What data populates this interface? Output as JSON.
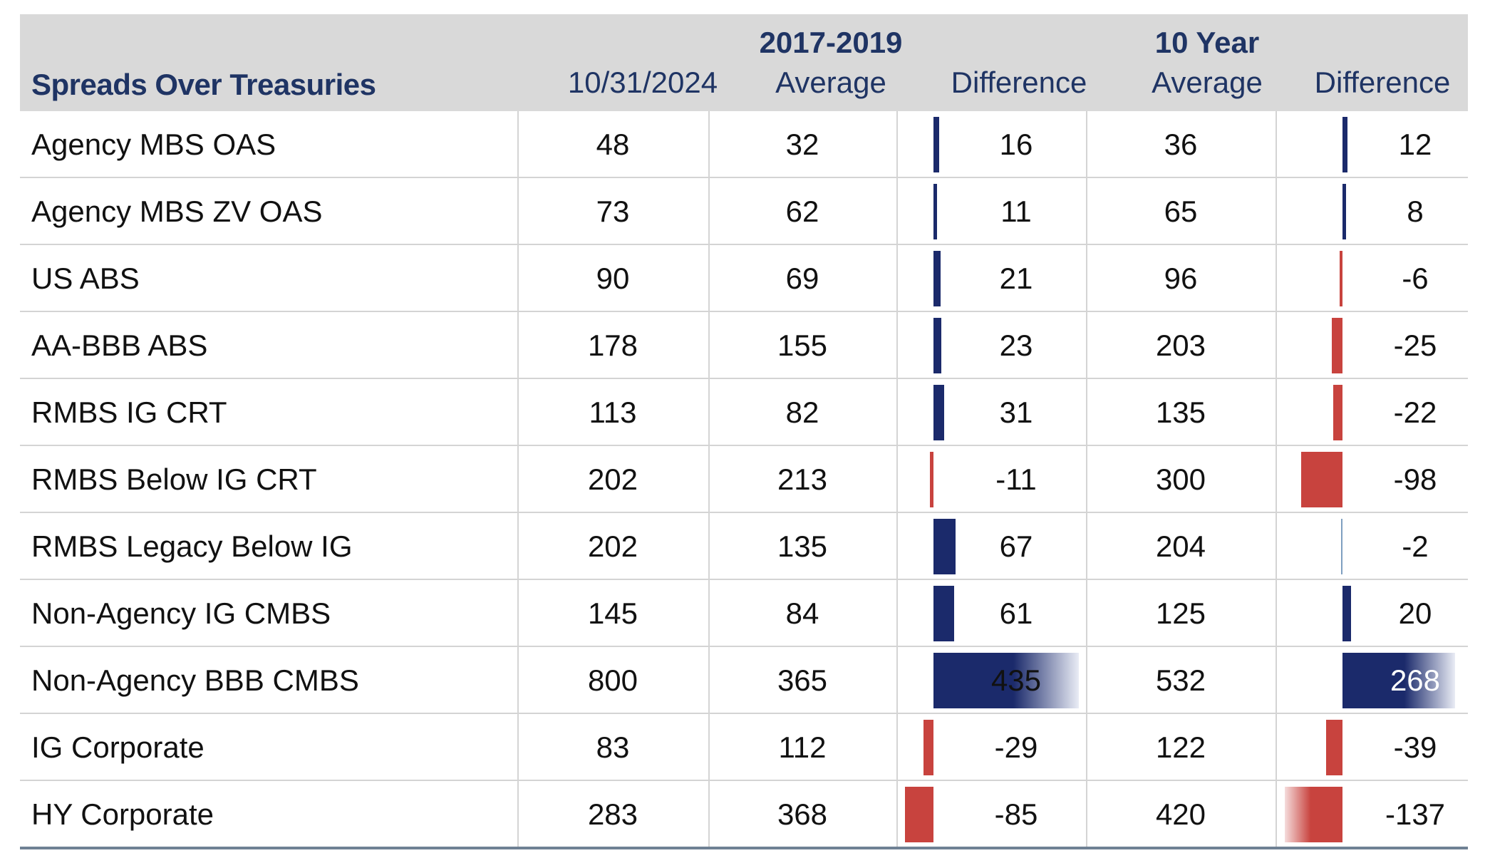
{
  "chart_data": {
    "type": "table",
    "header": {
      "title": "Spreads Over Treasuries",
      "col_date": "10/31/2024",
      "group1_label": "2017-2019",
      "col_avg1": "Average",
      "col_diff1": "Difference",
      "group2_label": "10 Year",
      "col_avg2": "Average",
      "col_diff2": "Difference"
    },
    "rows": [
      {
        "name": "Agency MBS OAS",
        "current": 48,
        "avg_2017_2019": 32,
        "diff_2017_2019": 16,
        "avg_10yr": 36,
        "diff_10yr": 12
      },
      {
        "name": "Agency MBS ZV OAS",
        "current": 73,
        "avg_2017_2019": 62,
        "diff_2017_2019": 11,
        "avg_10yr": 65,
        "diff_10yr": 8
      },
      {
        "name": "US ABS",
        "current": 90,
        "avg_2017_2019": 69,
        "diff_2017_2019": 21,
        "avg_10yr": 96,
        "diff_10yr": -6
      },
      {
        "name": "AA-BBB ABS",
        "current": 178,
        "avg_2017_2019": 155,
        "diff_2017_2019": 23,
        "avg_10yr": 203,
        "diff_10yr": -25
      },
      {
        "name": "RMBS IG CRT",
        "current": 113,
        "avg_2017_2019": 82,
        "diff_2017_2019": 31,
        "avg_10yr": 135,
        "diff_10yr": -22
      },
      {
        "name": "RMBS Below IG CRT",
        "current": 202,
        "avg_2017_2019": 213,
        "diff_2017_2019": -11,
        "avg_10yr": 300,
        "diff_10yr": -98
      },
      {
        "name": "RMBS Legacy Below IG",
        "current": 202,
        "avg_2017_2019": 135,
        "diff_2017_2019": 67,
        "avg_10yr": 204,
        "diff_10yr": -2
      },
      {
        "name": "Non-Agency IG CMBS",
        "current": 145,
        "avg_2017_2019": 84,
        "diff_2017_2019": 61,
        "avg_10yr": 125,
        "diff_10yr": 20
      },
      {
        "name": "Non-Agency BBB CMBS",
        "current": 800,
        "avg_2017_2019": 365,
        "diff_2017_2019": 435,
        "avg_10yr": 532,
        "diff_10yr": 268
      },
      {
        "name": "IG Corporate",
        "current": 83,
        "avg_2017_2019": 112,
        "diff_2017_2019": -29,
        "avg_10yr": 122,
        "diff_10yr": -39
      },
      {
        "name": "HY Corporate",
        "current": 283,
        "avg_2017_2019": 368,
        "diff_2017_2019": -85,
        "avg_10yr": 420,
        "diff_10yr": -137
      }
    ],
    "colors": {
      "positive": "#1b2a6b",
      "negative": "#c8433e",
      "header_bg": "#d9d9d9",
      "header_text": "#1f3464"
    }
  }
}
